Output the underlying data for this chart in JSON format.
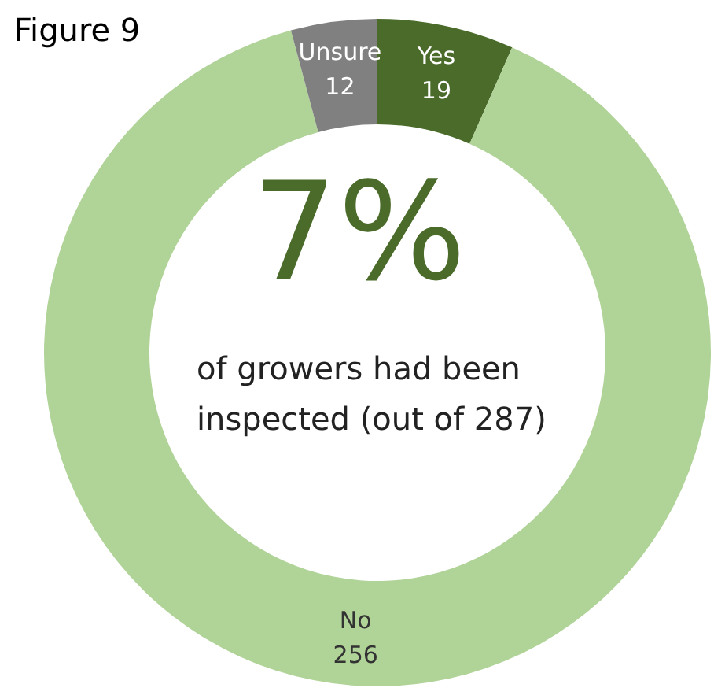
{
  "chart_data": {
    "type": "donut",
    "title": "Figure 9",
    "categories": [
      "Yes",
      "No",
      "Unsure"
    ],
    "values": [
      19,
      256,
      12
    ],
    "colors": [
      "#4a6b2a",
      "#b0d398",
      "#808080"
    ],
    "data_labels": true,
    "annotations": [
      "7%",
      "of growers had been inspected (out of 287)"
    ]
  }
}
